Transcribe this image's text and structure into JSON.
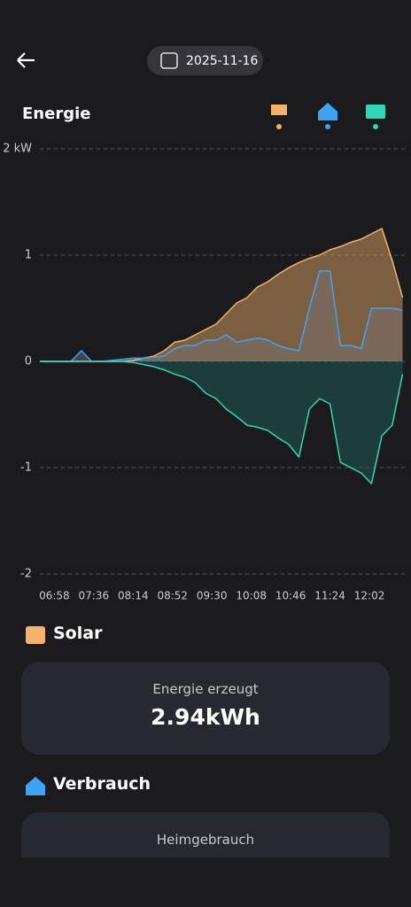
{
  "header": {
    "date": "2025-11-16"
  },
  "chart_title": "Energie",
  "chart_data": {
    "type": "line",
    "x": [
      404,
      414,
      424,
      434,
      444,
      454,
      464,
      474,
      484,
      494,
      504,
      514,
      524,
      534,
      544,
      554,
      564,
      574,
      584,
      594,
      604,
      614,
      624,
      634,
      644,
      654,
      664,
      674,
      684,
      694,
      704,
      714,
      724,
      734,
      744,
      754
    ],
    "series": [
      {
        "color": "#f4b26a",
        "values": [
          0,
          0,
          0,
          0,
          0,
          0,
          0,
          0,
          0,
          0.01,
          0.03,
          0.05,
          0.1,
          0.18,
          0.2,
          0.25,
          0.3,
          0.35,
          0.45,
          0.55,
          0.6,
          0.7,
          0.75,
          0.82,
          0.88,
          0.93,
          0.97,
          1.0,
          1.05,
          1.08,
          1.12,
          1.15,
          1.2,
          1.25,
          0.95,
          0.6
        ]
      },
      {
        "color": "#3fa3f5",
        "values": [
          0,
          0,
          0,
          0,
          0.1,
          0,
          0,
          0.01,
          0.02,
          0.03,
          0.03,
          0.04,
          0.05,
          0.12,
          0.15,
          0.15,
          0.2,
          0.2,
          0.25,
          0.18,
          0.2,
          0.22,
          0.2,
          0.15,
          0.12,
          0.1,
          0.5,
          0.85,
          0.85,
          0.15,
          0.15,
          0.12,
          0.5,
          0.5,
          0.5,
          0.48
        ]
      },
      {
        "color": "#2fd6b8",
        "values": [
          0,
          0,
          0,
          0,
          0,
          0,
          0,
          0,
          0,
          -0.01,
          -0.03,
          -0.05,
          -0.08,
          -0.12,
          -0.15,
          -0.2,
          -0.3,
          -0.35,
          -0.45,
          -0.52,
          -0.6,
          -0.62,
          -0.65,
          -0.72,
          -0.78,
          -0.9,
          -0.45,
          -0.35,
          -0.4,
          -0.95,
          -1.0,
          -1.05,
          -1.15,
          -0.7,
          -0.6,
          -0.12
        ]
      }
    ],
    "xlim": [
      404,
      757
    ],
    "xticks": [
      {
        "value": 418,
        "label": "06:58"
      },
      {
        "value": 456,
        "label": "07:36"
      },
      {
        "value": 494,
        "label": "08:14"
      },
      {
        "value": 532,
        "label": "08:52"
      },
      {
        "value": 570,
        "label": "09:30"
      },
      {
        "value": 608,
        "label": "10:08"
      },
      {
        "value": 646,
        "label": "10:46"
      },
      {
        "value": 684,
        "label": "11:24"
      },
      {
        "value": 722,
        "label": "12:02"
      }
    ],
    "ylim": [
      -2,
      2
    ],
    "yticks": [
      {
        "value": 2,
        "label": "2 kW"
      },
      1,
      0,
      -1,
      -2
    ],
    "grid": true
  },
  "solar": {
    "title": "Solar",
    "label": "Energie erzeugt",
    "value": "2.94kWh"
  },
  "consumption": {
    "title": "Verbrauch",
    "label": "Heimgebrauch"
  }
}
